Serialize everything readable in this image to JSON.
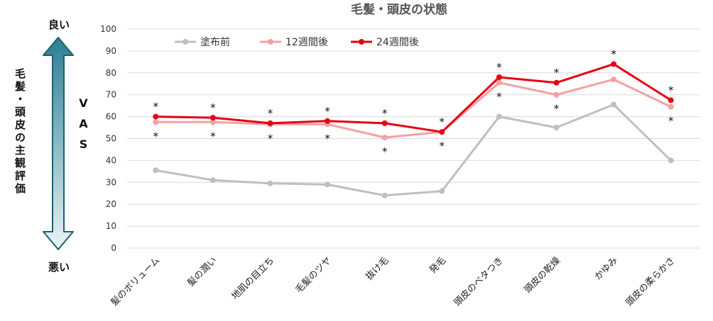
{
  "scale": {
    "top": "良い",
    "bottom": "悪い",
    "description": "毛髪・頭皮の主観評価",
    "unit": "VAS"
  },
  "chart_data": {
    "type": "line",
    "title": "毛髪・頭皮の状態",
    "xlabel": "",
    "ylabel": "VAS",
    "ylim": [
      0,
      100
    ],
    "yticks": [
      0,
      10,
      20,
      30,
      40,
      50,
      60,
      70,
      80,
      90,
      100
    ],
    "grid": true,
    "legend_position": "top-left",
    "categories": [
      "髪のボリューム",
      "髪の潤い",
      "地肌の目立ち",
      "毛髪のツヤ",
      "抜け毛",
      "発毛",
      "頭皮のベタつき",
      "頭皮の乾燥",
      "かゆみ",
      "頭皮の柔らかさ"
    ],
    "series": [
      {
        "name": "塗布前",
        "color": "#bfbfbf",
        "values": [
          35.5,
          31,
          29.5,
          29,
          24,
          26,
          60,
          55,
          65.5,
          40
        ]
      },
      {
        "name": "12週間後",
        "color": "#f4a0a3",
        "values": [
          57.5,
          57.5,
          56.5,
          56.5,
          50.5,
          53,
          75.5,
          70,
          77,
          64.5
        ]
      },
      {
        "name": "24週間後",
        "color": "#e60012",
        "values": [
          60,
          59.5,
          57,
          58,
          57,
          53,
          78,
          75.5,
          84,
          67.5
        ]
      }
    ],
    "annotations": {
      "marker": "*",
      "above_series": "24週間後",
      "below_series": "12週間後",
      "above": [
        true,
        true,
        true,
        true,
        true,
        true,
        true,
        true,
        true,
        true
      ],
      "below": [
        true,
        true,
        true,
        true,
        true,
        true,
        true,
        true,
        false,
        true
      ]
    }
  }
}
